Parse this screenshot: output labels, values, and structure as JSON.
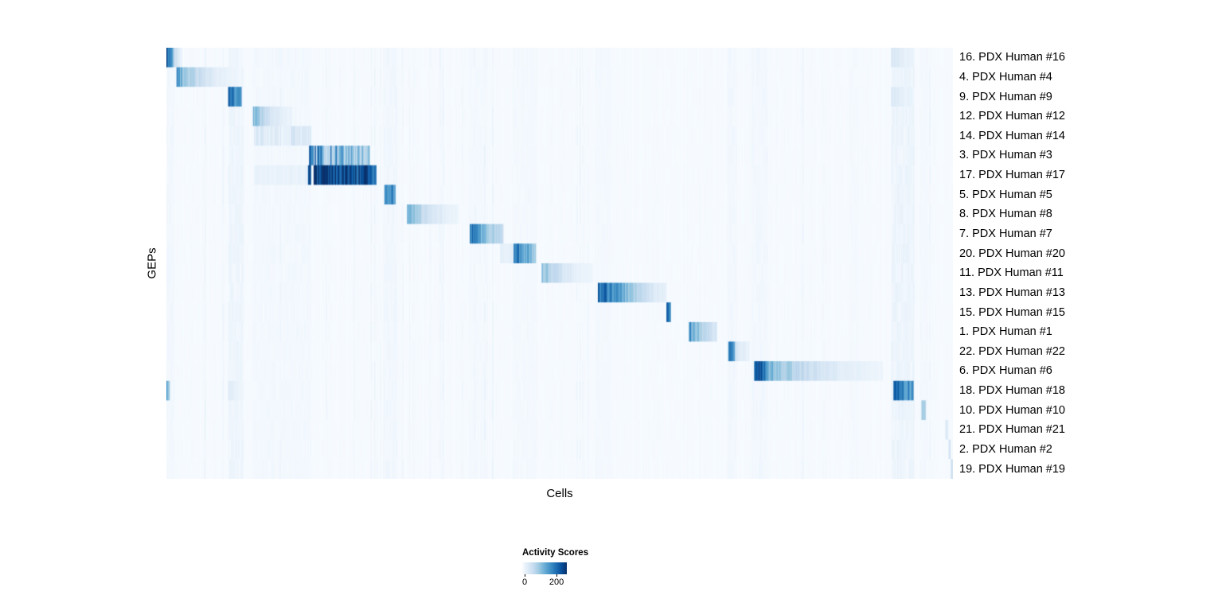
{
  "chart_data": {
    "type": "heatmap",
    "xlabel": "Cells",
    "ylabel": "GEPs",
    "legend": {
      "title": "Activity Scores",
      "min": 0,
      "max": 200
    },
    "value_range": [
      0,
      260
    ],
    "colormap": {
      "name": "Blues",
      "stops": [
        "#f7fbff",
        "#deebf7",
        "#c6dbef",
        "#9ecae1",
        "#6baed6",
        "#4292c6",
        "#2171b5",
        "#08519c",
        "#08306b"
      ]
    },
    "rows": [
      {
        "label": "16. PDX Human #16",
        "striped": false,
        "segments": [
          {
            "x0": 0.0,
            "x1": 0.008,
            "v0": 205,
            "v1": 175
          },
          {
            "x0": 0.008,
            "x1": 0.02,
            "v0": 95,
            "v1": 14
          },
          {
            "x0": 0.922,
            "x1": 0.948,
            "v0": 40,
            "v1": 18
          }
        ]
      },
      {
        "label": "4. PDX Human #4",
        "striped": false,
        "segments": [
          {
            "x0": 0.013,
            "x1": 0.084,
            "v0": 150,
            "v1": 14
          }
        ]
      },
      {
        "label": "9. PDX Human #9",
        "striped": false,
        "segments": [
          {
            "x0": 0.079,
            "x1": 0.096,
            "v0": 195,
            "v1": 150
          },
          {
            "x0": 0.922,
            "x1": 0.948,
            "v0": 35,
            "v1": 16
          }
        ]
      },
      {
        "label": "12. PDX Human #12",
        "striped": false,
        "segments": [
          {
            "x0": 0.11,
            "x1": 0.16,
            "v0": 125,
            "v1": 14
          }
        ]
      },
      {
        "label": "14. PDX Human #14",
        "striped": true,
        "segments": [
          {
            "x0": 0.112,
            "x1": 0.158,
            "v0": 40,
            "v1": 25
          },
          {
            "x0": 0.158,
            "x1": 0.184,
            "v0": 70,
            "v1": 35
          }
        ]
      },
      {
        "label": "3. PDX Human #3",
        "striped": true,
        "segments": [
          {
            "x0": 0.181,
            "x1": 0.258,
            "v0": 190,
            "v1": 110
          }
        ]
      },
      {
        "label": "17. PDX Human #17",
        "striped": false,
        "segments": [
          {
            "x0": 0.112,
            "x1": 0.18,
            "v0": 18,
            "v1": 18
          },
          {
            "x0": 0.1805,
            "x1": 0.184,
            "v0": 220,
            "v1": 220
          },
          {
            "x0": 0.187,
            "x1": 0.267,
            "v0": 245,
            "v1": 215
          }
        ]
      },
      {
        "label": "5. PDX Human #5",
        "striped": false,
        "segments": [
          {
            "x0": 0.277,
            "x1": 0.292,
            "v0": 190,
            "v1": 145
          }
        ]
      },
      {
        "label": "8. PDX Human #8",
        "striped": false,
        "segments": [
          {
            "x0": 0.306,
            "x1": 0.372,
            "v0": 135,
            "v1": 13
          }
        ]
      },
      {
        "label": "7. PDX Human #7",
        "striped": false,
        "segments": [
          {
            "x0": 0.386,
            "x1": 0.428,
            "v0": 195,
            "v1": 55
          }
        ]
      },
      {
        "label": "20. PDX Human #20",
        "striped": false,
        "segments": [
          {
            "x0": 0.425,
            "x1": 0.441,
            "v0": 22,
            "v1": 22
          },
          {
            "x0": 0.441,
            "x1": 0.47,
            "v0": 200,
            "v1": 95
          }
        ]
      },
      {
        "label": "11. PDX Human #11",
        "striped": false,
        "segments": [
          {
            "x0": 0.477,
            "x1": 0.543,
            "v0": 115,
            "v1": 11
          }
        ]
      },
      {
        "label": "13. PDX Human #13",
        "striped": false,
        "segments": [
          {
            "x0": 0.548,
            "x1": 0.578,
            "v0": 205,
            "v1": 140
          },
          {
            "x0": 0.578,
            "x1": 0.636,
            "v0": 140,
            "v1": 22
          }
        ]
      },
      {
        "label": "15. PDX Human #15",
        "striped": false,
        "segments": [
          {
            "x0": 0.636,
            "x1": 0.641,
            "v0": 200,
            "v1": 175
          }
        ]
      },
      {
        "label": "1. PDX Human #1",
        "striped": false,
        "segments": [
          {
            "x0": 0.664,
            "x1": 0.7,
            "v0": 165,
            "v1": 38
          }
        ]
      },
      {
        "label": "22. PDX Human #22",
        "striped": false,
        "segments": [
          {
            "x0": 0.714,
            "x1": 0.723,
            "v0": 195,
            "v1": 150
          },
          {
            "x0": 0.723,
            "x1": 0.742,
            "v0": 55,
            "v1": 14
          }
        ]
      },
      {
        "label": "6. PDX Human #6",
        "striped": false,
        "segments": [
          {
            "x0": 0.747,
            "x1": 0.761,
            "v0": 215,
            "v1": 190
          },
          {
            "x0": 0.761,
            "x1": 0.912,
            "v0": 135,
            "v1": 12
          }
        ]
      },
      {
        "label": "18. PDX Human #18",
        "striped": false,
        "segments": [
          {
            "x0": 0.0,
            "x1": 0.005,
            "v0": 130,
            "v1": 100
          },
          {
            "x0": 0.079,
            "x1": 0.092,
            "v0": 30,
            "v1": 18
          },
          {
            "x0": 0.924,
            "x1": 0.95,
            "v0": 205,
            "v1": 145
          }
        ]
      },
      {
        "label": "10. PDX Human #10",
        "striped": false,
        "segments": [
          {
            "x0": 0.96,
            "x1": 0.966,
            "v0": 100,
            "v1": 70
          }
        ]
      },
      {
        "label": "21. PDX Human #21",
        "striped": false,
        "segments": [
          {
            "x0": 0.99,
            "x1": 0.994,
            "v0": 30,
            "v1": 30
          }
        ]
      },
      {
        "label": "2. PDX Human #2",
        "striped": false,
        "segments": [
          {
            "x0": 0.994,
            "x1": 0.997,
            "v0": 45,
            "v1": 45
          }
        ]
      },
      {
        "label": "19. PDX Human #19",
        "striped": false,
        "segments": [
          {
            "x0": 0.997,
            "x1": 1.0,
            "v0": 55,
            "v1": 55
          }
        ]
      }
    ],
    "column_bands": [
      {
        "x0": 0.0,
        "x1": 0.01,
        "v": 8
      },
      {
        "x0": 0.079,
        "x1": 0.097,
        "v": 13
      },
      {
        "x0": 0.11,
        "x1": 0.185,
        "v": 7
      },
      {
        "x0": 0.276,
        "x1": 0.294,
        "v": 9
      },
      {
        "x0": 0.385,
        "x1": 0.406,
        "v": 6
      },
      {
        "x0": 0.44,
        "x1": 0.472,
        "v": 6
      },
      {
        "x0": 0.546,
        "x1": 0.566,
        "v": 6
      },
      {
        "x0": 0.713,
        "x1": 0.726,
        "v": 8
      },
      {
        "x0": 0.744,
        "x1": 0.764,
        "v": 8
      },
      {
        "x0": 0.868,
        "x1": 0.88,
        "v": 5
      },
      {
        "x0": 0.922,
        "x1": 0.951,
        "v": 15
      },
      {
        "x0": 0.957,
        "x1": 0.968,
        "v": 6
      }
    ]
  }
}
